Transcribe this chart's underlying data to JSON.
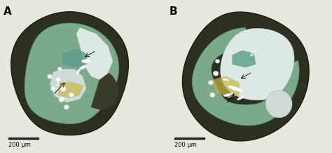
{
  "figure_width": 4.74,
  "figure_height": 2.18,
  "dpi": 100,
  "panel_labels": [
    "A",
    "B"
  ],
  "panel_label_fontsize": 11,
  "panel_label_fontweight": "bold",
  "scale_bar_text_fontsize": 6,
  "bg_color": "#f0f0ec",
  "panel_bg": "#e8e8df",
  "outer_wall_color": "#2c3020",
  "outer_wall_edge": "#1a1a0f",
  "plaque_green": "#7aaa8c",
  "plaque_green_edge": "#5a8a6c",
  "plaque_teal": "#5a9e8a",
  "plaque_teal_edge": "#4a8e7a",
  "lumen_color": "#dce8e2",
  "lumen_edge": "#aabcb4",
  "lumen2_color": "#d0dbd5",
  "lumen2_edge": "#9aacaa",
  "calc_color": "white",
  "calc_edge": "#cccccc",
  "yellow_color": "#c8b840",
  "yellow_edge": "#a89830",
  "vacuole_color": "white",
  "vacuole_edge": "#ccddcc",
  "scale_bar_color": "#222222",
  "scale_bar_text": "200 μm"
}
